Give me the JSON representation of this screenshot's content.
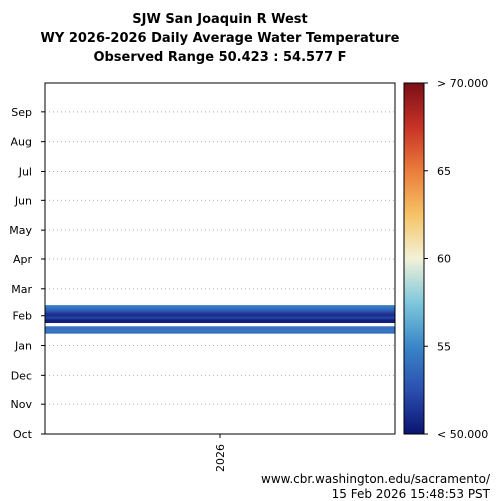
{
  "chart_data": {
    "type": "heatmap",
    "title": [
      "SJW San Joaquin R West",
      "WY 2026-2026 Daily Average Water Temperature",
      "Observed Range 50.423 : 54.577 F"
    ],
    "xlabel": "",
    "ylabel": "",
    "x_categories": [
      "2026"
    ],
    "y_tick_labels": [
      "Oct",
      "Nov",
      "Dec",
      "Jan",
      "Feb",
      "Mar",
      "Apr",
      "May",
      "Jun",
      "Jul",
      "Aug",
      "Sep"
    ],
    "y_tick_days": [
      0,
      31,
      61,
      92,
      123,
      151,
      182,
      212,
      243,
      273,
      304,
      335
    ],
    "y_range_days": [
      0,
      365
    ],
    "observed_range": [
      50.423,
      54.577
    ],
    "grid": true,
    "daily_values": [
      {
        "day": 105,
        "value": 53.9
      },
      {
        "day": 106,
        "value": 54.1
      },
      {
        "day": 107,
        "value": 54.3
      },
      {
        "day": 108,
        "value": 54.4
      },
      {
        "day": 109,
        "value": 54.2
      },
      {
        "day": 110,
        "value": 53.9
      },
      {
        "day": 111,
        "value": 54.0
      },
      {
        "day": 116,
        "value": 50.6
      },
      {
        "day": 117,
        "value": 50.5
      },
      {
        "day": 118,
        "value": 50.4
      },
      {
        "day": 119,
        "value": 50.9
      },
      {
        "day": 120,
        "value": 51.6
      },
      {
        "day": 121,
        "value": 52.0
      },
      {
        "day": 122,
        "value": 51.7
      },
      {
        "day": 123,
        "value": 51.2
      },
      {
        "day": 124,
        "value": 51.0
      },
      {
        "day": 125,
        "value": 51.4
      },
      {
        "day": 126,
        "value": 51.8
      },
      {
        "day": 127,
        "value": 52.3
      },
      {
        "day": 128,
        "value": 52.8
      },
      {
        "day": 129,
        "value": 53.2
      },
      {
        "day": 130,
        "value": 53.6
      },
      {
        "day": 131,
        "value": 54.0
      },
      {
        "day": 132,
        "value": 54.4
      },
      {
        "day": 133,
        "value": 54.6
      }
    ],
    "colorbar": {
      "min": 50,
      "max": 70,
      "tick_values": [
        55,
        60,
        65
      ],
      "tick_labels": [
        "55",
        "60",
        "65"
      ],
      "min_label": "< 50.000",
      "max_label": "> 70.000",
      "colors": [
        "#0b1470",
        "#2b4fb0",
        "#3a86c8",
        "#7fc8dc",
        "#f2f2d8",
        "#f6c366",
        "#ea7c3c",
        "#c73226",
        "#7a0f18"
      ]
    }
  },
  "footer": {
    "url": "www.cbr.washington.edu/sacramento/",
    "timestamp": "15 Feb 2026 15:48:53 PST"
  }
}
